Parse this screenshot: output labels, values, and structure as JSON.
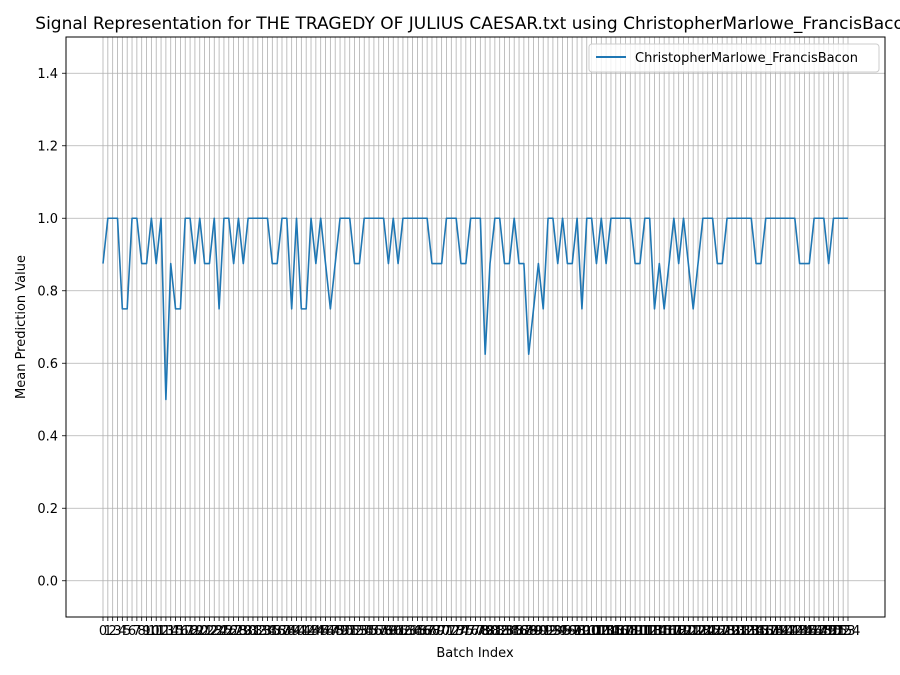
{
  "chart_data": {
    "type": "line",
    "title": "Signal Representation for THE TRAGEDY OF JULIUS CAESAR.txt using ChristopherMarlowe_FrancisBacon",
    "xlabel": "Batch Index",
    "ylabel": "Mean Prediction Value",
    "ylim": [
      -0.1,
      1.5
    ],
    "yticks": [
      0.0,
      0.2,
      0.4,
      0.6,
      0.8,
      1.0,
      1.2,
      1.4
    ],
    "ytick_labels": [
      "0.0",
      "0.2",
      "0.4",
      "0.6",
      "0.8",
      "1.0",
      "1.2",
      "1.4"
    ],
    "grid": true,
    "legend_position": "top-right",
    "series": [
      {
        "name": "ChristopherMarlowe_FrancisBacon",
        "color": "#1f77b4",
        "values": [
          0.875,
          1,
          1,
          1,
          0.75,
          0.75,
          1,
          1,
          0.875,
          0.875,
          1,
          0.875,
          1,
          0.5,
          0.875,
          0.75,
          0.75,
          1,
          1,
          0.875,
          1,
          0.875,
          0.875,
          1,
          0.75,
          1,
          1,
          0.875,
          1,
          0.875,
          1,
          1,
          1,
          1,
          1,
          0.875,
          0.875,
          1,
          1,
          0.75,
          1,
          0.75,
          0.75,
          1,
          0.875,
          1,
          0.875,
          0.75,
          0.875,
          1,
          1,
          1,
          0.875,
          0.875,
          1,
          1,
          1,
          1,
          1,
          0.875,
          1,
          0.875,
          1,
          1,
          1,
          1,
          1,
          1,
          0.875,
          0.875,
          0.875,
          1,
          1,
          1,
          0.875,
          0.875,
          1,
          1,
          1,
          0.625,
          0.875,
          1,
          1,
          0.875,
          0.875,
          1,
          0.875,
          0.875,
          0.625,
          0.75,
          0.875,
          0.75,
          1,
          1,
          0.875,
          1,
          0.875,
          0.875,
          1,
          0.75,
          1,
          1,
          0.875,
          1,
          0.875,
          1,
          1,
          1,
          1,
          1,
          0.875,
          0.875,
          1,
          1,
          0.75,
          0.875,
          0.75,
          0.875,
          1,
          0.875,
          1,
          0.875,
          0.75,
          0.875,
          1,
          1,
          1,
          0.875,
          0.875,
          1,
          1,
          1,
          1,
          1,
          1,
          0.875,
          0.875,
          1,
          1,
          1,
          1,
          1,
          1,
          1,
          0.875,
          0.875,
          0.875,
          1,
          1,
          1,
          0.875,
          1,
          1,
          1,
          1
        ]
      }
    ]
  }
}
